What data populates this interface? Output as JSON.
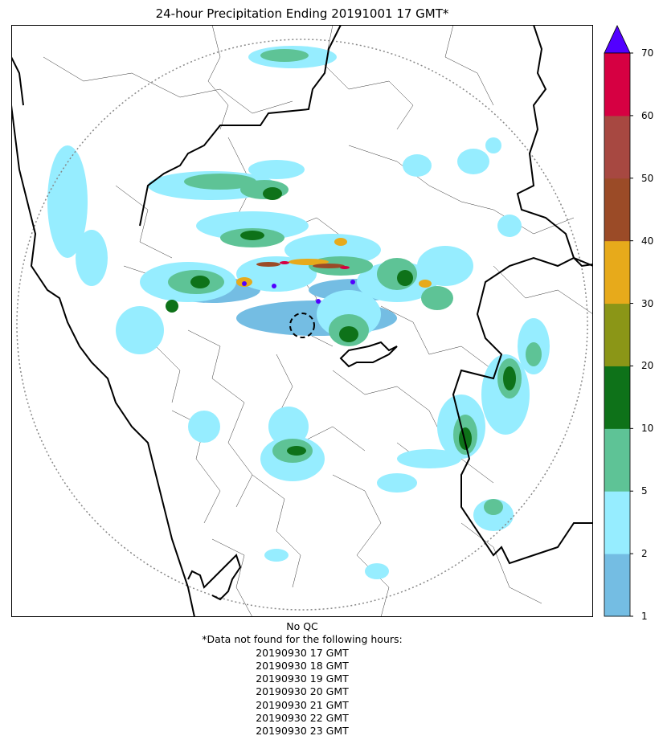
{
  "title": "24-hour Precipitation Ending 20191001 17 GMT*",
  "colorbar": {
    "levels": [
      "1",
      "2",
      "5",
      "10",
      "20",
      "30",
      "40",
      "50",
      "60",
      "70"
    ],
    "colors": [
      "#74bde3",
      "#96edff",
      "#5ec396",
      "#0e7219",
      "#8b9617",
      "#e7aa1b",
      "#9b4b27",
      "#a74841",
      "#d60042"
    ],
    "extend_color": "#5200ff"
  },
  "notes": {
    "qc": "No QC",
    "missing_header": "*Data not found for the following hours:",
    "missing_hours": [
      "20190930 17 GMT",
      "20190930 18 GMT",
      "20190930 19 GMT",
      "20190930 20 GMT",
      "20190930 21 GMT",
      "20190930 22 GMT",
      "20190930 23 GMT"
    ]
  }
}
